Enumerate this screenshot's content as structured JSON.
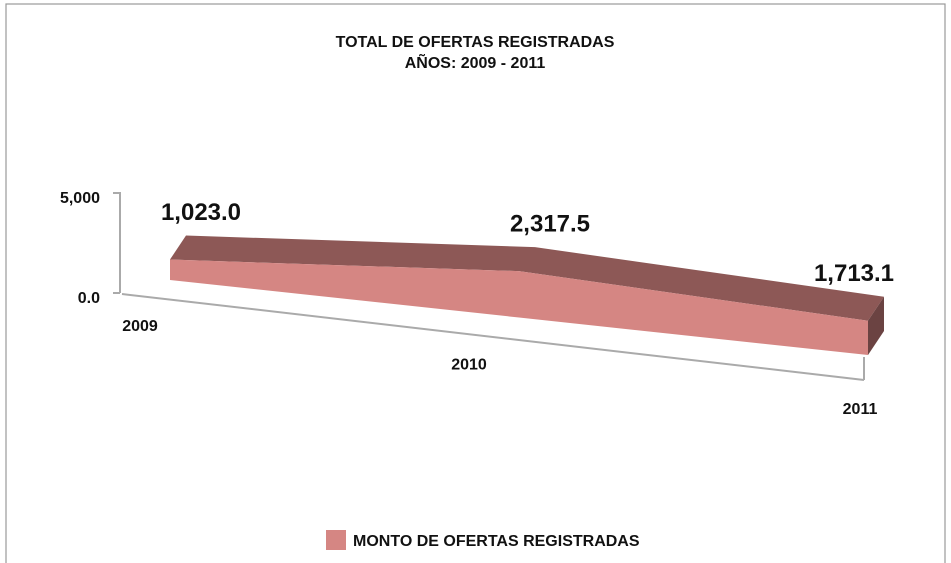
{
  "chart_data": {
    "type": "line",
    "title": "TOTAL DE OFERTAS REGISTRADAS",
    "subtitle": "AÑOS: 2009 - 2011",
    "categories": [
      "2009",
      "2010",
      "2011"
    ],
    "series": [
      {
        "name": "MONTO DE OFERTAS REGISTRADAS",
        "color": "#d58683",
        "values": [
          1023.0,
          2317.5,
          1713.1
        ],
        "value_labels": [
          "1,023.0",
          "2,317.5",
          "1,713.1"
        ]
      }
    ],
    "ylim": [
      0,
      5000
    ],
    "yticks": [
      {
        "value": 0,
        "label": "0.0"
      },
      {
        "value": 5000,
        "label": "5,000"
      }
    ]
  }
}
